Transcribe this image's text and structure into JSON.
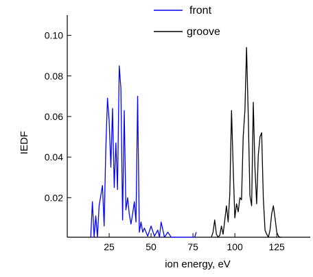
{
  "chart_data": {
    "type": "line",
    "title": "",
    "xlabel": "ion energy, eV",
    "ylabel": "IEDF",
    "xlim": [
      0,
      145
    ],
    "ylim": [
      0.0005,
      0.11
    ],
    "xticks": [
      25,
      50,
      75,
      100,
      125
    ],
    "yticks": [
      0.02,
      0.04,
      0.06,
      0.08,
      0.1
    ],
    "xtick_labels": [
      "25",
      "50",
      "75",
      "100",
      "125"
    ],
    "ytick_labels": [
      "0.02",
      "0.04",
      "0.06",
      "0.08",
      "0.10"
    ],
    "grid": false,
    "legend_placement": "top-center",
    "series": [
      {
        "name": "front",
        "color": "#0000ff",
        "x": [
          14,
          15,
          16,
          17,
          18,
          19,
          20,
          21,
          22,
          23,
          24,
          25,
          26,
          27,
          28,
          29,
          30,
          31,
          32,
          33,
          34,
          35,
          36,
          37,
          38,
          39,
          40,
          41,
          42,
          43,
          44,
          45,
          46,
          48,
          50,
          52,
          54,
          55,
          56,
          58,
          60,
          62,
          76,
          77
        ],
        "y": [
          0.0005,
          0.018,
          0.0005,
          0.011,
          0.0005,
          0.016,
          0.021,
          0.026,
          0.006,
          0.045,
          0.069,
          0.058,
          0.035,
          0.064,
          0.025,
          0.047,
          0.024,
          0.085,
          0.074,
          0.009,
          0.063,
          0.014,
          0.02,
          0.012,
          0.007,
          0.012,
          0.018,
          0.008,
          0.07,
          0.003,
          0.008,
          0.003,
          0.005,
          0.001,
          0.006,
          0.001,
          0.004,
          0.0005,
          0.008,
          0.0005,
          0.003,
          0.0005,
          0.0005,
          0.003
        ]
      },
      {
        "name": "groove",
        "color": "#000000",
        "x": [
          86,
          87,
          88,
          89,
          90,
          91,
          92,
          93,
          94,
          95,
          96,
          97,
          98,
          99,
          100,
          101,
          102,
          103,
          104,
          105,
          106,
          107,
          108,
          109,
          110,
          111,
          112,
          113,
          114,
          115,
          116,
          117,
          118,
          119,
          120,
          121,
          122,
          123,
          124,
          125,
          126,
          127,
          128
        ],
        "y": [
          0.0005,
          0.003,
          0.009,
          0.002,
          0.0005,
          0.0015,
          0.006,
          0.002,
          0.009,
          0.016,
          0.008,
          0.022,
          0.063,
          0.035,
          0.01,
          0.017,
          0.013,
          0.02,
          0.019,
          0.05,
          0.063,
          0.094,
          0.06,
          0.021,
          0.016,
          0.067,
          0.035,
          0.017,
          0.041,
          0.05,
          0.052,
          0.02,
          0.004,
          0.002,
          0.0005,
          0.004,
          0.012,
          0.016,
          0.01,
          0.003,
          0.001,
          0.0005,
          0.0005
        ]
      }
    ]
  }
}
